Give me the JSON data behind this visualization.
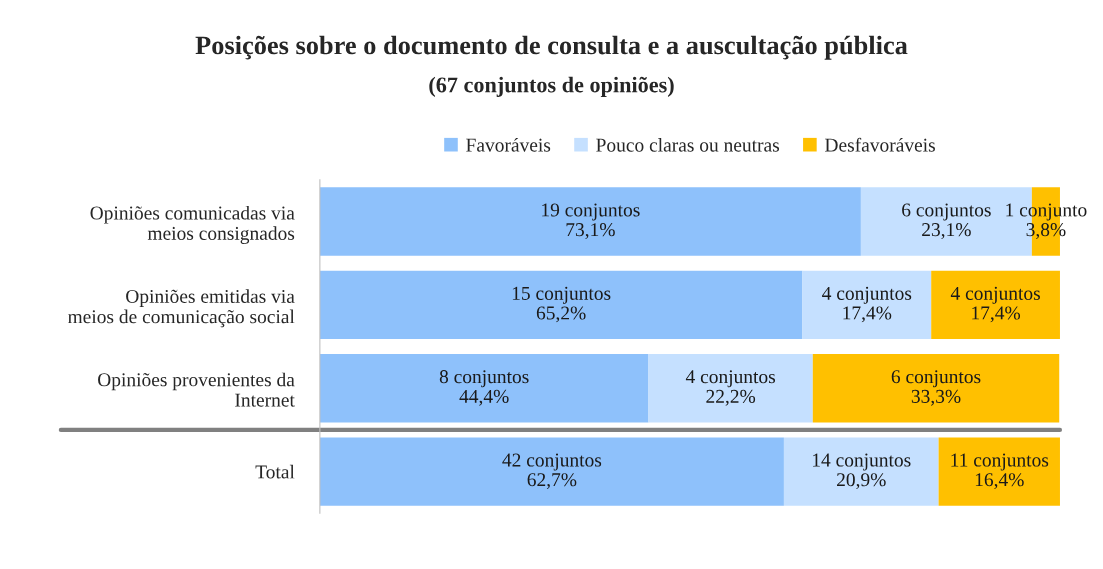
{
  "chart_data": {
    "type": "bar",
    "orientation": "horizontal",
    "stacked": true,
    "title": "Posições sobre o documento de consulta e a auscultação pública",
    "subtitle": "(67 conjuntos de opiniões)",
    "categories": [
      "Opiniões comunicadas via\nmeios consignados",
      "Opiniões emitidas via\nmeios de comunicação social",
      "Opiniões provenientes da\nInternet",
      "Total"
    ],
    "series": [
      {
        "name": "Favoráveis",
        "color": "#8ec1fb",
        "values": [
          73.1,
          65.2,
          44.4,
          62.7
        ],
        "value_labels": [
          "19 conjuntos\n73,1%",
          "15 conjuntos\n65,2%",
          "8 conjuntos\n44,4%",
          "42 conjuntos\n62,7%"
        ]
      },
      {
        "name": "Pouco claras ou neutras",
        "color": "#c5e0ff",
        "values": [
          23.1,
          17.4,
          22.2,
          20.9
        ],
        "value_labels": [
          "6 conjuntos\n23,1%",
          "4 conjuntos\n17,4%",
          "4 conjuntos\n22,2%",
          "14 conjuntos\n20,9%"
        ]
      },
      {
        "name": "Desfavoráveis",
        "color": "#ffc000",
        "values": [
          3.8,
          17.4,
          33.3,
          16.4
        ],
        "value_labels": [
          "1 conjunto\n3,8%",
          "4 conjuntos\n17,4%",
          "6 conjuntos\n33,3%",
          "11 conjuntos\n16,4%"
        ]
      }
    ],
    "legend": "top",
    "grid": false
  }
}
